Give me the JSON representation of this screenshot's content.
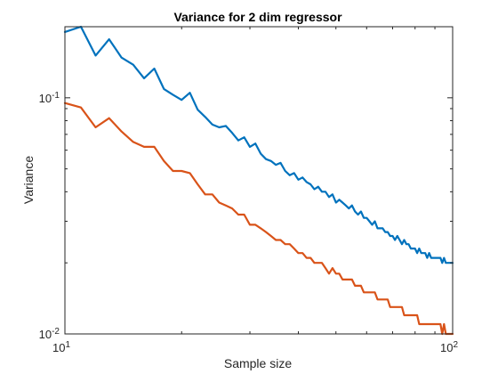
{
  "chart_data": {
    "type": "line",
    "title": "Variance for 2 dim regressor",
    "xlabel": "Sample size",
    "ylabel": "Variance",
    "xscale": "log",
    "yscale": "log",
    "xlim": [
      10,
      100
    ],
    "ylim": [
      0.01,
      0.2
    ],
    "grid": false,
    "x_ticks": [
      {
        "value": 10,
        "base": "10",
        "exp": "1"
      },
      {
        "value": 100,
        "base": "10",
        "exp": "2"
      }
    ],
    "y_ticks": [
      {
        "value": 0.1,
        "base": "10",
        "exp": "-1"
      },
      {
        "value": 0.01,
        "base": "10",
        "exp": "-2"
      }
    ],
    "x": [
      10,
      11,
      12,
      13,
      14,
      15,
      16,
      17,
      18,
      19,
      20,
      21,
      22,
      23,
      24,
      25,
      26,
      27,
      28,
      29,
      30,
      31,
      32,
      33,
      34,
      35,
      36,
      37,
      38,
      39,
      40,
      41,
      42,
      43,
      44,
      45,
      46,
      47,
      48,
      49,
      50,
      51,
      52,
      53,
      54,
      55,
      56,
      57,
      58,
      59,
      60,
      61,
      62,
      63,
      64,
      65,
      66,
      67,
      68,
      69,
      70,
      71,
      72,
      73,
      74,
      75,
      76,
      77,
      78,
      79,
      80,
      81,
      82,
      83,
      84,
      85,
      86,
      87,
      88,
      89,
      90,
      91,
      92,
      93,
      94,
      95,
      96,
      97,
      98,
      99,
      100
    ],
    "series": [
      {
        "color": "#0072BD",
        "values": [
          0.19,
          0.2,
          0.151,
          0.177,
          0.148,
          0.138,
          0.121,
          0.133,
          0.109,
          0.103,
          0.098,
          0.105,
          0.089,
          0.083,
          0.077,
          0.075,
          0.076,
          0.071,
          0.066,
          0.068,
          0.062,
          0.064,
          0.058,
          0.055,
          0.054,
          0.052,
          0.053,
          0.049,
          0.047,
          0.048,
          0.045,
          0.046,
          0.044,
          0.043,
          0.041,
          0.042,
          0.04,
          0.04,
          0.038,
          0.039,
          0.036,
          0.037,
          0.036,
          0.035,
          0.034,
          0.035,
          0.033,
          0.032,
          0.033,
          0.031,
          0.031,
          0.03,
          0.029,
          0.03,
          0.028,
          0.028,
          0.028,
          0.027,
          0.027,
          0.026,
          0.026,
          0.025,
          0.026,
          0.025,
          0.024,
          0.025,
          0.024,
          0.024,
          0.023,
          0.023,
          0.023,
          0.022,
          0.023,
          0.022,
          0.022,
          0.022,
          0.021,
          0.022,
          0.021,
          0.021,
          0.021,
          0.021,
          0.021,
          0.021,
          0.02,
          0.021,
          0.02,
          0.02,
          0.02,
          0.02,
          0.02
        ]
      },
      {
        "color": "#D95319",
        "values": [
          0.095,
          0.091,
          0.075,
          0.082,
          0.072,
          0.065,
          0.062,
          0.062,
          0.054,
          0.049,
          0.049,
          0.048,
          0.043,
          0.039,
          0.039,
          0.036,
          0.035,
          0.034,
          0.032,
          0.032,
          0.029,
          0.029,
          0.028,
          0.027,
          0.026,
          0.025,
          0.025,
          0.024,
          0.024,
          0.023,
          0.022,
          0.022,
          0.021,
          0.021,
          0.02,
          0.02,
          0.02,
          0.019,
          0.018,
          0.019,
          0.018,
          0.018,
          0.017,
          0.017,
          0.017,
          0.017,
          0.016,
          0.016,
          0.016,
          0.015,
          0.015,
          0.015,
          0.015,
          0.015,
          0.014,
          0.014,
          0.014,
          0.014,
          0.014,
          0.013,
          0.013,
          0.013,
          0.013,
          0.013,
          0.013,
          0.012,
          0.012,
          0.012,
          0.012,
          0.012,
          0.012,
          0.012,
          0.011,
          0.011,
          0.011,
          0.011,
          0.011,
          0.011,
          0.011,
          0.011,
          0.011,
          0.011,
          0.011,
          0.011,
          0.01,
          0.011,
          0.01,
          0.01,
          0.01,
          0.01,
          0.01
        ]
      }
    ]
  }
}
